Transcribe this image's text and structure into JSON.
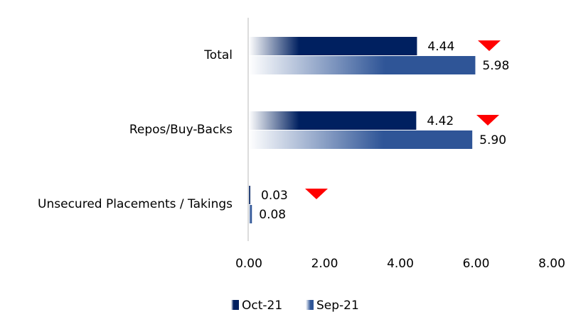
{
  "chart_data": {
    "type": "bar",
    "orientation": "horizontal",
    "categories": [
      "Total",
      "Repos/Buy-Backs",
      "Unsecured Placements / Takings"
    ],
    "series": [
      {
        "name": "Oct-21",
        "color": "#002060",
        "values": [
          4.44,
          4.42,
          0.03
        ],
        "value_labels": [
          "4.44",
          "4.42",
          "0.03"
        ]
      },
      {
        "name": "Sep-21",
        "color": "#2f5597",
        "values": [
          5.98,
          5.9,
          0.08
        ],
        "value_labels": [
          "5.98",
          "5.90",
          "0.08"
        ]
      }
    ],
    "xlim": [
      0,
      8
    ],
    "xticks": [
      {
        "value": 0,
        "label": "0.00"
      },
      {
        "value": 2,
        "label": "2.00"
      },
      {
        "value": 4,
        "label": "4.00"
      },
      {
        "value": 6,
        "label": "6.00"
      },
      {
        "value": 8,
        "label": "8.00"
      }
    ],
    "legend": "bottom"
  }
}
